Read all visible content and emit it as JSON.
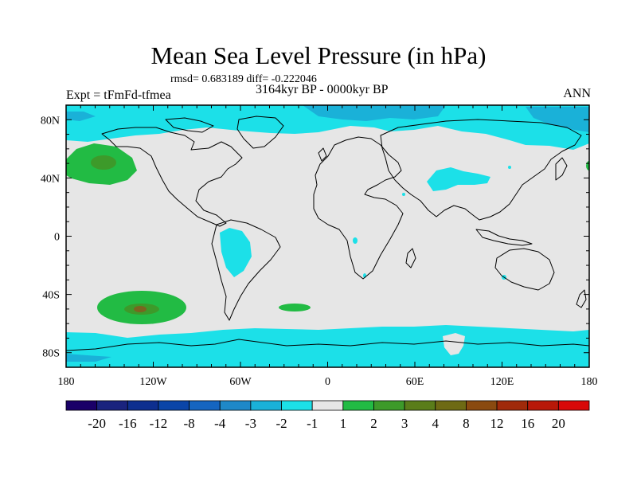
{
  "title": "Mean Sea Level Pressure (in hPa)",
  "stats": "rmsd= 0.683189 diff= -0.222046",
  "experiment": "Expt = tFmFd-tfmea",
  "period": "3164kyr BP - 0000kyr BP",
  "season": "ANN",
  "axes": {
    "lat_labels": [
      "80N",
      "40N",
      "0",
      "40S",
      "80S"
    ],
    "lat_values": [
      80,
      40,
      0,
      -40,
      -80
    ],
    "lon_labels": [
      "180",
      "120W",
      "60W",
      "0",
      "60E",
      "120E",
      "180"
    ],
    "lon_values": [
      -180,
      -120,
      -60,
      0,
      60,
      120,
      180
    ],
    "lat_range": [
      -90,
      90
    ],
    "lon_range": [
      -180,
      180
    ]
  },
  "colorbar": {
    "labels": [
      "-20",
      "-16",
      "-12",
      "-8",
      "-4",
      "-3",
      "-2",
      "-1",
      "1",
      "2",
      "3",
      "4",
      "8",
      "12",
      "16",
      "20"
    ],
    "colors": [
      "#1a0068",
      "#1a237e",
      "#0d2f8f",
      "#0a45a8",
      "#1565c0",
      "#1e88c8",
      "#1ab1d8",
      "#1ce0e8",
      "#e6e6e6",
      "#22bb44",
      "#3d9a2a",
      "#5a7d1a",
      "#6e6a14",
      "#8a4a10",
      "#a02a0a",
      "#b81808",
      "#d80808"
    ]
  },
  "colors": {
    "background_field": "#e6e6e6",
    "negative_1_2": "#1ce0e8",
    "negative_2_3": "#1ab1d8",
    "positive_1_2": "#22bb44",
    "positive_2_3": "#3d9a2a",
    "positive_3_4": "#7a6420"
  }
}
